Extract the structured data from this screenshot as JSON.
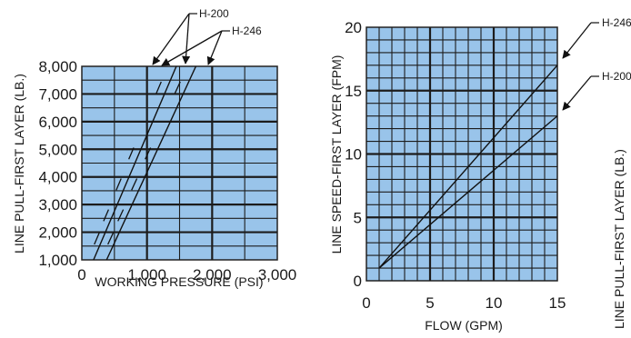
{
  "chart_data": [
    {
      "type": "line",
      "xlabel": "WORKING PRESSURE (PSI)",
      "ylabel": "LINE PULL-FIRST LAYER (LB.)",
      "xlim": [
        0,
        3000
      ],
      "ylim": [
        1000,
        8000
      ],
      "x_ticks": [
        "0",
        "1,000",
        "2,000",
        "3,000"
      ],
      "y_ticks": [
        "1,000",
        "2,000",
        "3,000",
        "4,000",
        "5,000",
        "6,000",
        "7,000",
        "8,000"
      ],
      "grid": true,
      "background": "#99c4ea",
      "series": [
        {
          "name": "H-200",
          "x": [
            180,
            1450
          ],
          "y": [
            1000,
            8000
          ]
        },
        {
          "name": "H-246",
          "x": [
            380,
            1750
          ],
          "y": [
            1000,
            8000
          ]
        }
      ],
      "annotations": [
        {
          "text": "H-200"
        },
        {
          "text": "H-246"
        }
      ]
    },
    {
      "type": "line",
      "xlabel": "FLOW (GPM)",
      "ylabel": "LINE SPEED-FIRST LAYER (FPM)",
      "xlim": [
        0,
        15
      ],
      "ylim": [
        0,
        20
      ],
      "x_ticks": [
        "0",
        "5",
        "10",
        "15"
      ],
      "y_ticks": [
        "0",
        "5",
        "10",
        "15",
        "20"
      ],
      "grid": true,
      "background": "#99c4ea",
      "series": [
        {
          "name": "H-246",
          "x": [
            1,
            15
          ],
          "y": [
            1,
            17
          ]
        },
        {
          "name": "H-200",
          "x": [
            1,
            15
          ],
          "y": [
            1,
            13
          ]
        }
      ],
      "annotations": [
        {
          "text": "H-246"
        },
        {
          "text": "H-200"
        }
      ]
    }
  ],
  "partial_label": "LINE PULL-FIRST LAYER (LB.)"
}
